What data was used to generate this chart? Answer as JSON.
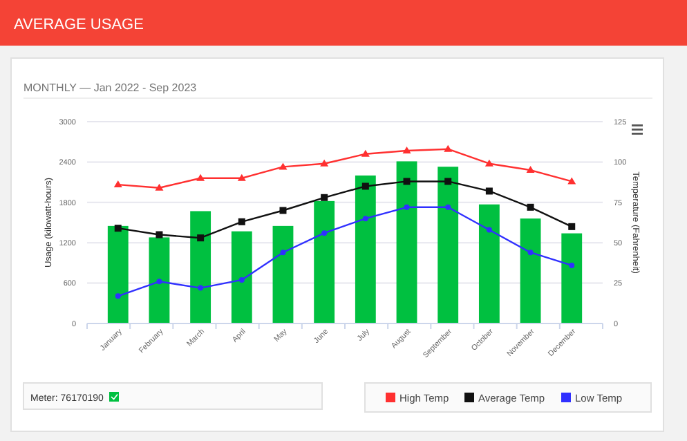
{
  "chart_data": {
    "type": "bar",
    "title": "AVERAGE USAGE",
    "subtitle": "MONTHLY — Jan 2022 - Sep 2023",
    "categories": [
      "January",
      "February",
      "March",
      "April",
      "May",
      "June",
      "July",
      "August",
      "September",
      "October",
      "November",
      "December"
    ],
    "ylabel": "Usage (kilowatt-hours)",
    "y2label": "Temperature (Fahrenheit)",
    "ylim": [
      0,
      3000
    ],
    "yticks": [
      0,
      600,
      1200,
      1800,
      2400,
      3000
    ],
    "y2lim": [
      0,
      125
    ],
    "y2ticks": [
      0,
      25,
      50,
      75,
      100,
      125
    ],
    "grid": "y",
    "legend": "bottom",
    "annotations": [
      "Meter: 76170190"
    ],
    "series": [
      {
        "color": "#00c040",
        "values": [
          1450,
          1280,
          1670,
          1370,
          1450,
          1820,
          2200,
          2410,
          2330,
          1770,
          1560,
          1340
        ]
      },
      {
        "name": "High Temp",
        "type": "line",
        "axis": "y2",
        "color": "#ff3030",
        "marker": "triangle",
        "values": [
          86,
          84,
          90,
          90,
          97,
          99,
          105,
          107,
          108,
          99,
          95,
          88
        ]
      },
      {
        "name": "Average Temp",
        "type": "line",
        "axis": "y2",
        "color": "#111111",
        "marker": "square",
        "values": [
          59,
          55,
          53,
          63,
          70,
          78,
          85,
          88,
          88,
          82,
          72,
          60
        ]
      },
      {
        "name": "Low Temp",
        "type": "line",
        "axis": "y2",
        "color": "#3030ff",
        "marker": "circle",
        "values": [
          17,
          26,
          22,
          27,
          44,
          56,
          65,
          72,
          72,
          58,
          44,
          36
        ]
      }
    ]
  }
}
